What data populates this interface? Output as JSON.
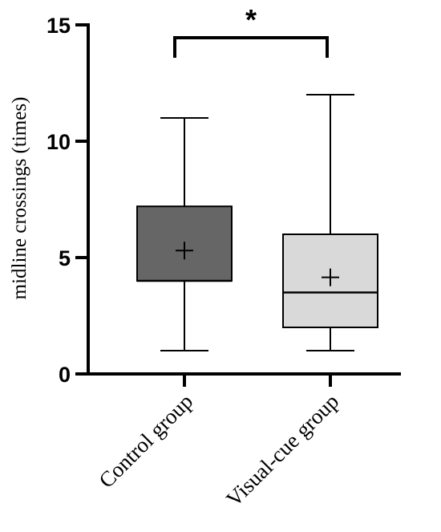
{
  "chart_data": {
    "type": "box",
    "ylabel": "midline crossings (times)",
    "ylim": [
      0,
      15
    ],
    "yticks": [
      0,
      5,
      10,
      15
    ],
    "ytick_labels": [
      "0",
      "5",
      "10",
      "15"
    ],
    "grid": false,
    "categories": [
      "Control group",
      "Visual-cue group"
    ],
    "boxes": [
      {
        "category": "Control group",
        "min": 1,
        "q1": 4,
        "median": 4,
        "q3": 7.2,
        "max": 11,
        "mean": 5.3,
        "fill": "#666666"
      },
      {
        "category": "Visual-cue group",
        "min": 1,
        "q1": 2,
        "median": 3.5,
        "q3": 6,
        "max": 12,
        "mean": 4.15,
        "fill": "#d9d9d9"
      }
    ],
    "significance": {
      "label": "*",
      "between": [
        "Control group",
        "Visual-cue group"
      ],
      "level": 14.5
    }
  }
}
